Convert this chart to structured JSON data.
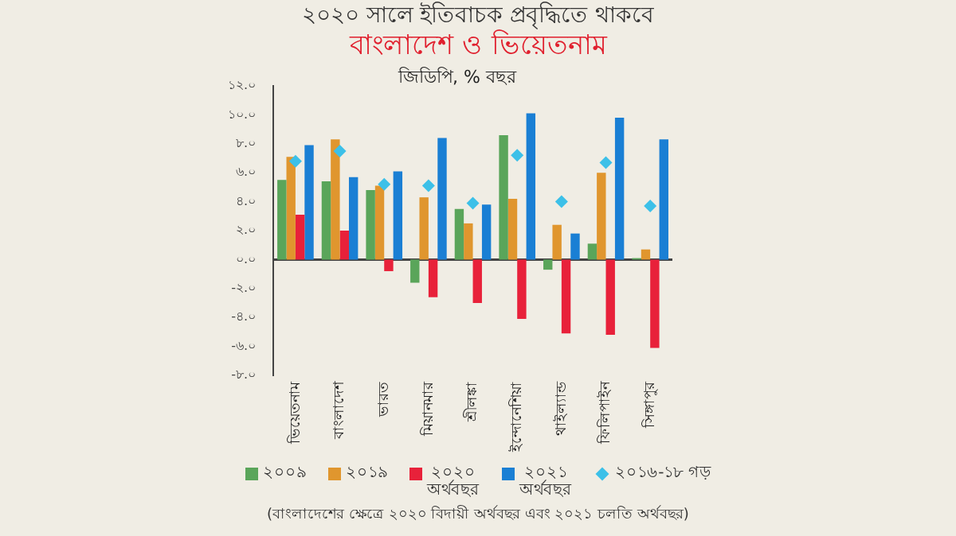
{
  "chart_data": {
    "type": "bar",
    "title": "২০২০ সালে ইতিবাচক প্রবৃদ্ধিতে থাকবে",
    "subtitle": "বাংলাদেশ ও ভিয়েতনাম",
    "ylabel": "জিডিপি, % বছর",
    "categories": [
      "ভিয়েতনাম",
      "বাংলাদেশ",
      "ভারত",
      "মিয়ানমার",
      "শ্রীলঙ্কা",
      "ইন্দোনেশিয়া",
      "থাইল্যান্ড",
      "ফিলিপাইন",
      "সিঙ্গাপুর"
    ],
    "series": [
      {
        "name": "২০০৯",
        "color": "#5aa55a",
        "values": [
          5.5,
          5.4,
          4.8,
          -1.6,
          3.5,
          8.6,
          -0.7,
          1.1,
          0.1
        ]
      },
      {
        "name": "২০১৯",
        "color": "#e0962e",
        "values": [
          7.1,
          8.3,
          5.1,
          4.3,
          2.5,
          4.2,
          2.4,
          6.0,
          0.7
        ]
      },
      {
        "name": "২০২০\nঅর্থবছর",
        "color": "#e8213a",
        "values": [
          3.1,
          2.0,
          -0.8,
          -2.6,
          -3.0,
          -4.1,
          -5.1,
          -5.2,
          -6.1
        ]
      },
      {
        "name": "২০২১\nঅর্থবছর",
        "color": "#1a7fd4",
        "values": [
          7.9,
          5.7,
          6.1,
          8.4,
          3.8,
          10.1,
          1.8,
          9.8,
          8.3
        ]
      },
      {
        "name": "২০১৬-১৮ গড়",
        "type": "scatter",
        "color": "#3cc0e8",
        "values": [
          6.8,
          7.5,
          5.2,
          5.1,
          3.9,
          7.2,
          4.0,
          6.7,
          3.7
        ]
      }
    ],
    "marker": "diamond",
    "ylim": [
      -8,
      12
    ],
    "yticks": [
      {
        "value": -8,
        "label": "-৮.০"
      },
      {
        "value": -6,
        "label": "-৬.০"
      },
      {
        "value": -4,
        "label": "-৪.০"
      },
      {
        "value": -2,
        "label": "-২.০"
      },
      {
        "value": 0,
        "label": "০.০"
      },
      {
        "value": 2,
        "label": "২.০"
      },
      {
        "value": 4,
        "label": "৪.০"
      },
      {
        "value": 6,
        "label": "৬.০"
      },
      {
        "value": 8,
        "label": "৮.০"
      },
      {
        "value": 10,
        "label": "১০.০"
      },
      {
        "value": 12,
        "label": "১২.০"
      }
    ],
    "ref_lines": [
      {
        "axis": "y",
        "value": 0,
        "color": "#444444"
      }
    ],
    "grid": false,
    "legend": "bottom",
    "annotations": [
      "(বাংলাদেশের ক্ষেত্রে ২০২০ বিদায়ী অর্থবছর এবং ২০২১ চলতি অর্থবছর)"
    ]
  }
}
